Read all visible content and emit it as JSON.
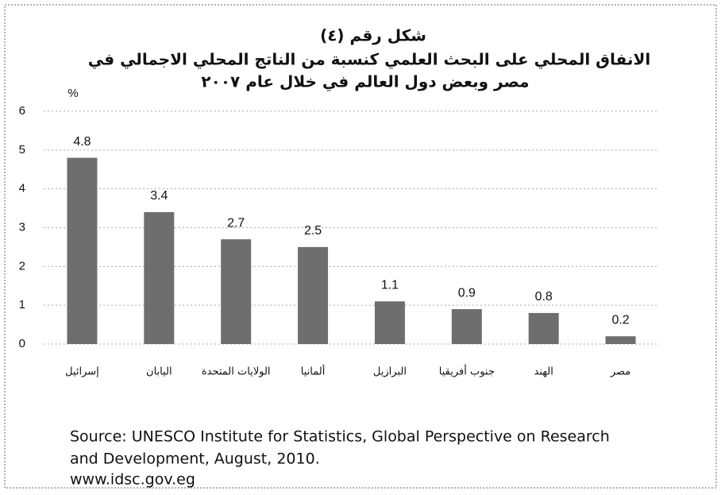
{
  "chart_data": {
    "type": "bar",
    "title": [
      "شكل رقم (٤)",
      "الانفاق المحلي على البحث العلمي كنسبة من الناتج المحلي الاجمالي في",
      "مصر وبعض دول العالم في خلال عام ٢٠٠٧"
    ],
    "ylabel": "%",
    "categories": [
      "إسرائيل",
      "اليابان",
      "الولايات المتحدة",
      "ألمانيا",
      "البرازيل",
      "جنوب أفريقيا",
      "الهند",
      "مصر"
    ],
    "values": [
      4.8,
      3.4,
      2.7,
      2.5,
      1.1,
      0.9,
      0.8,
      0.2
    ],
    "color": "#6e6e6e",
    "ylim": [
      0,
      6
    ],
    "yticks": [
      0,
      1,
      2,
      3,
      4,
      5,
      6
    ],
    "grid": true,
    "source": [
      "Source: UNESCO Institute for Statistics, Global Perspective on Research",
      "and Development, August, 2010.",
      "www.idsc.gov.eg"
    ]
  }
}
